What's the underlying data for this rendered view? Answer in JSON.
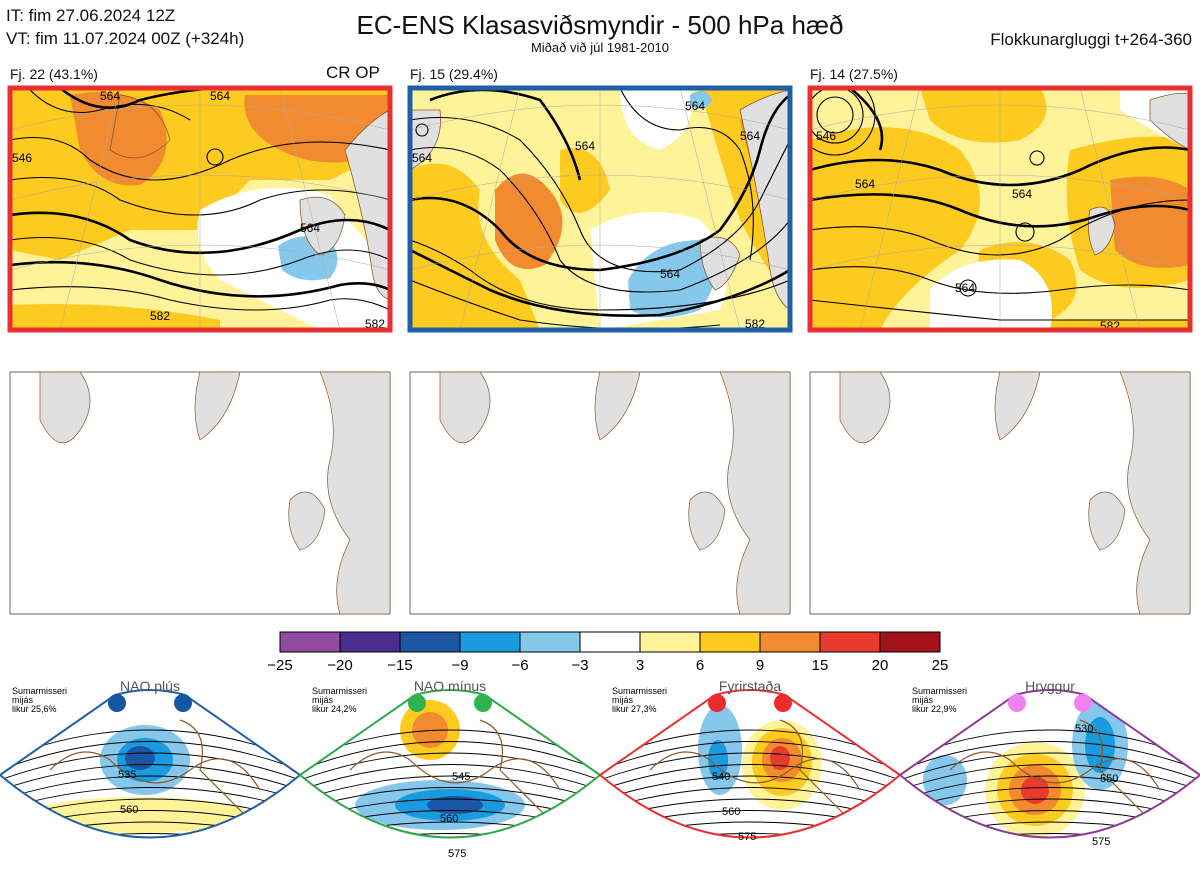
{
  "header": {
    "init_time": "IT: fim 27.06.2024 12Z",
    "valid_time": "VT: fim 11.07.2024 00Z  (+324h)",
    "title": "EC-ENS Klasasviðsmyndir - 500 hPa hæð",
    "subtitle": "Miðað við júl 1981-2010",
    "window": "Flokkunargluggi t+264-360"
  },
  "clusters": [
    {
      "label": "Fj. 22 (43.1%)",
      "badge": "CR OP",
      "border_color": "#e83030",
      "contours": [
        "564",
        "546",
        "564",
        "564",
        "582",
        "582"
      ]
    },
    {
      "label": "Fj. 15 (29.4%)",
      "badge": "",
      "border_color": "#1f5fa8",
      "contours": [
        "564",
        "564",
        "564",
        "564",
        "564",
        "582"
      ]
    },
    {
      "label": "Fj. 14 (27.5%)",
      "badge": "",
      "border_color": "#e83030",
      "contours": [
        "546",
        "564",
        "564",
        "564",
        "582"
      ]
    }
  ],
  "colorbar": {
    "ticks": [
      "−25",
      "−20",
      "−15",
      "−9",
      "−6",
      "−3",
      "3",
      "6",
      "9",
      "15",
      "20",
      "25"
    ],
    "colors": [
      "#8e4ba0",
      "#4a2d8e",
      "#1e56a6",
      "#1a9be0",
      "#86c8ec",
      "#ffffff",
      "#fff39a",
      "#fdca1f",
      "#f28a30",
      "#e83b2c",
      "#a3141a"
    ]
  },
  "regimes": [
    {
      "name": "NAO plús",
      "caption": [
        "Sumarmisseri",
        "mijás",
        "likur 25,6%"
      ],
      "color": "#1f5fa8",
      "dot_color": "#1456a4",
      "contours": [
        "535",
        "560"
      ]
    },
    {
      "name": "NAO mínus",
      "caption": [
        "Sumarmisseri",
        "mijás",
        "likur 24,2%"
      ],
      "color": "#2fa84a",
      "dot_color": "#2fb34f",
      "contours": [
        "545",
        "560",
        "575"
      ]
    },
    {
      "name": "Fyrirstaða",
      "caption": [
        "Sumarmisseri",
        "mijás",
        "likur 27,3%"
      ],
      "color": "#e83030",
      "dot_color": "#ea2c2c",
      "contours": [
        "540",
        "560",
        "575"
      ]
    },
    {
      "name": "Hryggur",
      "caption": [
        "Sumarmisseri",
        "mijás",
        "likur 22,9%"
      ],
      "color": "#8e3a94",
      "dot_color": "#ee82ee",
      "contours": [
        "530",
        "550",
        "575"
      ]
    }
  ]
}
